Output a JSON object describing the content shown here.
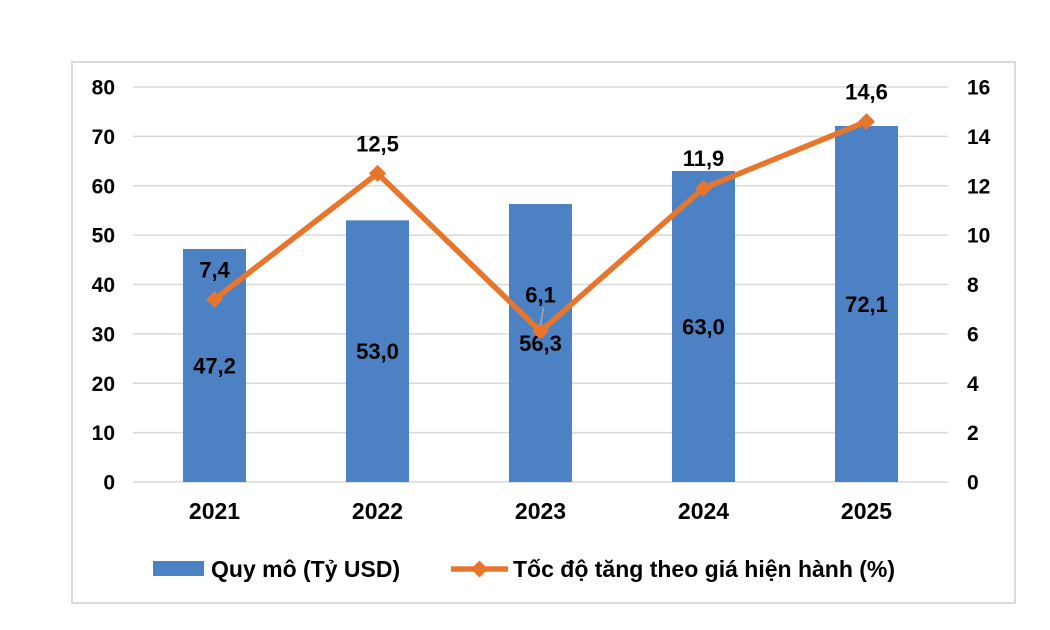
{
  "chart_data": {
    "type": "bar",
    "subtype": "combo-bar-line-dual-axis",
    "title": "",
    "categories": [
      "2021",
      "2022",
      "2023",
      "2024",
      "2025"
    ],
    "series": [
      {
        "name": "Quy mô (Tỷ USD)",
        "type": "bar",
        "axis": "left",
        "values": [
          47.2,
          53.0,
          56.3,
          63.0,
          72.1
        ],
        "labels": [
          "47,2",
          "53,0",
          "56,3",
          "63,0",
          "72,1"
        ],
        "color": "#4C82C4"
      },
      {
        "name": "Tốc độ tăng theo giá hiện hành (%)",
        "type": "line",
        "axis": "right",
        "values": [
          7.4,
          12.5,
          6.1,
          11.9,
          14.6
        ],
        "labels": [
          "7,4",
          "12,5",
          "6,1",
          "11,9",
          "14,6"
        ],
        "color": "#E8752C",
        "marker": "diamond",
        "label_offsets": [
          30,
          30,
          37,
          30,
          30
        ],
        "leader_line_index": 2
      }
    ],
    "left_axis": {
      "min": 0,
      "max": 80,
      "step": 10,
      "ticks": [
        "0",
        "10",
        "20",
        "30",
        "40",
        "50",
        "60",
        "70",
        "80"
      ]
    },
    "right_axis": {
      "min": 0,
      "max": 16,
      "step": 2,
      "ticks": [
        "0",
        "2",
        "4",
        "6",
        "8",
        "10",
        "12",
        "14",
        "16"
      ]
    },
    "grid": true,
    "legend_position": "bottom"
  },
  "colors": {
    "bar": "#4C82C4",
    "line": "#E8752C",
    "grid": "#D9D9D9",
    "frame_border": "#DADADA",
    "text": "#000000",
    "background": "#FFFFFF",
    "leader": "#A6A6A6"
  }
}
